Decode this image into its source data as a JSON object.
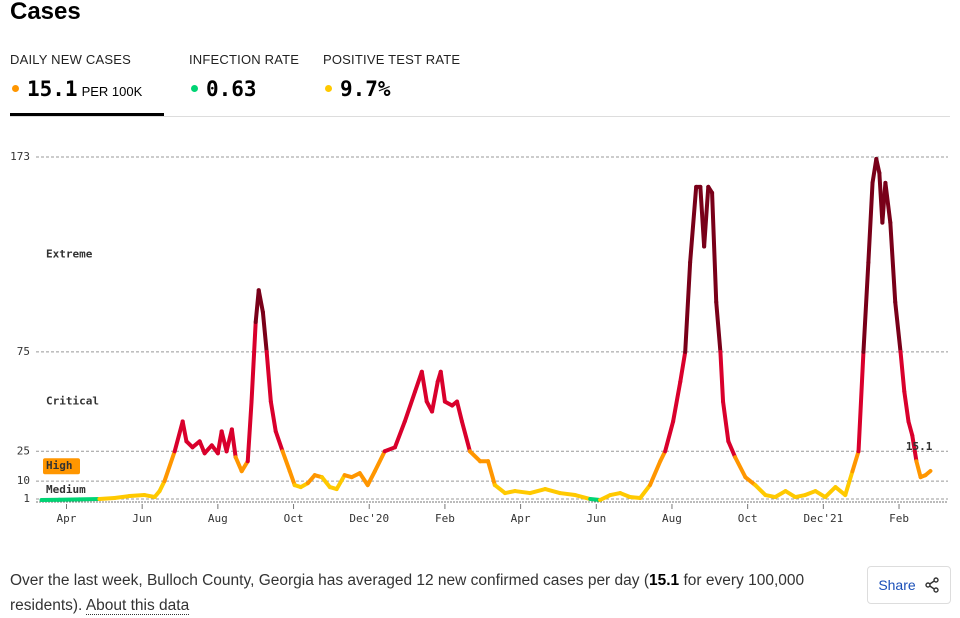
{
  "header": {
    "title": "Cases"
  },
  "metrics": [
    {
      "label": "DAILY NEW CASES",
      "value": "15.1",
      "unit": "PER 100K",
      "color": "#ff9600"
    },
    {
      "label": "INFECTION RATE",
      "value": "0.63",
      "color": "#00d474"
    },
    {
      "label": "POSITIVE TEST RATE",
      "value": "9.7%",
      "color": "#ffc900"
    }
  ],
  "chart_data": {
    "type": "line",
    "x": [
      -0.66,
      -0.19,
      0.34,
      0.87,
      1.27,
      1.67,
      2.06,
      2.33,
      2.46,
      2.59,
      2.86,
      3.07,
      3.17,
      3.33,
      3.52,
      3.65,
      3.84,
      4.0,
      4.1,
      4.23,
      4.37,
      4.47,
      4.63,
      4.79,
      4.89,
      5.0,
      5.08,
      5.19,
      5.29,
      5.4,
      5.53,
      5.71,
      5.9,
      6.03,
      6.19,
      6.38,
      6.56,
      6.75,
      6.96,
      7.14,
      7.35,
      7.54,
      7.75,
      7.96,
      8.15,
      8.41,
      8.68,
      8.94,
      9.21,
      9.39,
      9.52,
      9.66,
      9.81,
      9.89,
      10.0,
      10.19,
      10.32,
      10.45,
      10.66,
      10.93,
      11.14,
      11.32,
      11.59,
      11.85,
      12.25,
      12.65,
      13.04,
      13.44,
      13.84,
      14.1,
      14.37,
      14.63,
      14.89,
      15.16,
      15.42,
      15.69,
      15.82,
      16.03,
      16.22,
      16.35,
      16.48,
      16.64,
      16.75,
      16.85,
      16.96,
      17.06,
      17.17,
      17.28,
      17.35,
      17.49,
      17.67,
      17.94,
      18.2,
      18.47,
      18.73,
      19.0,
      19.26,
      19.52,
      19.79,
      20.05,
      20.32,
      20.58,
      20.77,
      20.93,
      21.06,
      21.19,
      21.3,
      21.4,
      21.48,
      21.56,
      21.64,
      21.77,
      21.9,
      22.04,
      22.14,
      22.25,
      22.35,
      22.46,
      22.57,
      22.7,
      22.83
    ],
    "values": [
      0.5,
      0.6,
      0.8,
      1,
      1.5,
      2.5,
      3,
      2,
      5,
      10,
      25,
      40,
      30,
      27,
      30,
      24,
      28,
      24,
      35,
      25,
      36,
      22,
      15,
      20,
      50,
      90,
      106,
      95,
      75,
      50,
      35,
      25,
      15,
      8,
      7,
      9,
      13,
      12,
      7,
      6,
      13,
      12,
      14,
      8,
      15,
      25,
      27,
      40,
      55,
      65,
      50,
      45,
      60,
      65,
      50,
      48,
      50,
      40,
      25,
      20,
      20,
      8,
      4,
      5,
      4,
      6,
      4,
      3,
      1,
      0.5,
      3,
      4,
      2,
      1.5,
      8,
      20,
      25,
      40,
      60,
      75,
      120,
      158,
      158,
      128,
      158,
      155,
      100,
      75,
      50,
      30,
      22,
      12,
      8,
      3,
      2,
      5,
      2,
      3,
      5,
      2,
      7,
      3,
      15,
      25,
      75,
      120,
      160,
      172,
      165,
      140,
      160,
      140,
      100,
      75,
      55,
      40,
      33,
      20,
      12,
      13,
      15.1
    ],
    "xlim": [
      -0.7,
      23.4
    ],
    "xticks": [
      {
        "value": 0,
        "label": "Apr"
      },
      {
        "value": 2,
        "label": "Jun"
      },
      {
        "value": 4,
        "label": "Aug"
      },
      {
        "value": 6,
        "label": "Oct"
      },
      {
        "value": 8,
        "label": "Dec'20"
      },
      {
        "value": 10,
        "label": "Feb"
      },
      {
        "value": 12,
        "label": "Apr"
      },
      {
        "value": 14,
        "label": "Jun"
      },
      {
        "value": 16,
        "label": "Aug"
      },
      {
        "value": 18,
        "label": "Oct"
      },
      {
        "value": 20,
        "label": "Dec'21"
      },
      {
        "value": 22,
        "label": "Feb"
      }
    ],
    "ylim": [
      0,
      173
    ],
    "yticks": [
      1,
      10,
      25,
      75,
      173
    ],
    "grid": true,
    "zones": [
      {
        "from": 0,
        "to": 1,
        "color": "#00d474"
      },
      {
        "label": "Medium",
        "from": 1,
        "to": 10,
        "color": "#ffc900"
      },
      {
        "label": "High",
        "from": 10,
        "to": 25,
        "color": "#ff9600"
      },
      {
        "label": "Critical",
        "from": 25,
        "to": 75,
        "color": "#d9002c"
      },
      {
        "label": "Extreme",
        "from": 75,
        "to": 173,
        "color": "#790019"
      }
    ]
  },
  "footer": {
    "parts": [
      "Over the last week, Bulloch County, Georgia has averaged 12 new confirmed cases per day (",
      "15.1",
      " for every 100,000 residents). ",
      "About this data"
    ],
    "share": "Share"
  }
}
